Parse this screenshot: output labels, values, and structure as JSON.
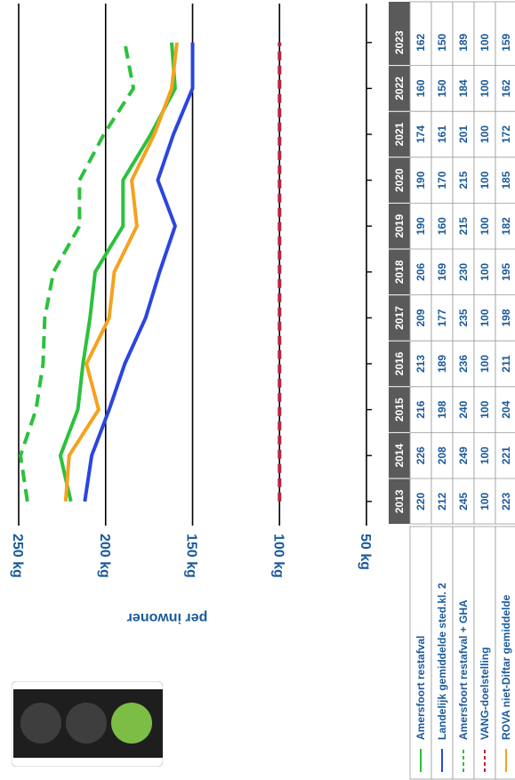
{
  "ui": {
    "traffic_light": {
      "lamps": [
        "off",
        "off",
        "on"
      ],
      "colors": {
        "off": "#3e3e3e",
        "on": "#7cbe45",
        "housing": "#1e1e1e"
      }
    }
  },
  "chart_data": {
    "type": "line",
    "orientation": "rotated-90-clockwise",
    "ylabel": "per inwoner",
    "y_ticks": [
      "250 kg",
      "200 kg",
      "150 kg",
      "100 kg",
      "50 kg"
    ],
    "ylim": [
      50,
      250
    ],
    "categories": [
      "2013",
      "2014",
      "2015",
      "2016",
      "2017",
      "2018",
      "2019",
      "2020",
      "2021",
      "2022",
      "2023"
    ],
    "series": [
      {
        "name": "Amersfoort restafval",
        "color": "#2cc13c",
        "dash": "solid",
        "values": [
          220,
          226,
          216,
          213,
          209,
          206,
          190,
          190,
          174,
          160,
          162
        ]
      },
      {
        "name": "Landelijk gemiddelde sted.kl. 2",
        "color": "#2b45e0",
        "dash": "solid",
        "values": [
          212,
          208,
          198,
          189,
          177,
          169,
          160,
          170,
          161,
          150,
          150
        ]
      },
      {
        "name": "Amersfoort restafval + GHA",
        "color": "#2cc13c",
        "dash": "dashed",
        "values": [
          245,
          249,
          240,
          236,
          235,
          230,
          215,
          215,
          201,
          184,
          189
        ]
      },
      {
        "name": "VANG-doelstelling",
        "color": "#b5263f",
        "dash": "dashed",
        "values": [
          100,
          100,
          100,
          100,
          100,
          100,
          100,
          100,
          100,
          100,
          100
        ]
      },
      {
        "name": "ROVA niet-Diftar gemiddelde",
        "color": "#f4a21e",
        "dash": "solid",
        "values": [
          223,
          221,
          204,
          211,
          198,
          195,
          182,
          185,
          172,
          162,
          159
        ]
      }
    ],
    "table": {
      "header_color": "#5a5a5a",
      "value_color": "#1a5a9a"
    },
    "grid": true,
    "legend": "bottom-left table"
  }
}
